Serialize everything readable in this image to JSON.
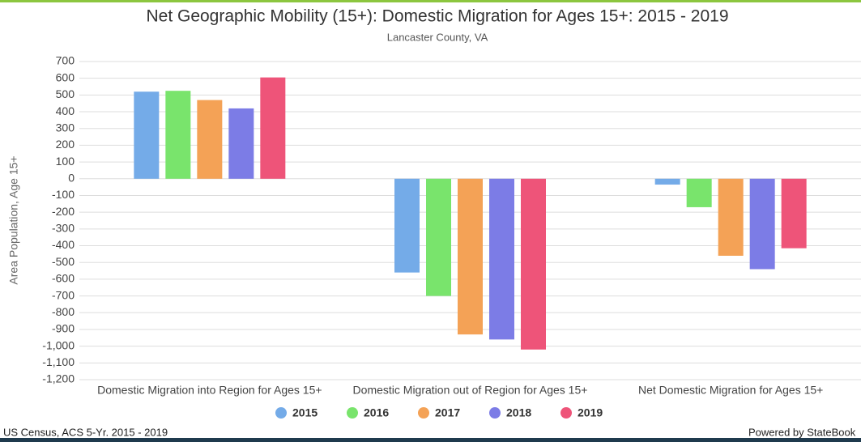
{
  "chart_data": {
    "type": "bar",
    "title": "Net Geographic Mobility (15+): Domestic Migration for Ages 15+: 2015 - 2019",
    "subtitle": "Lancaster County, VA",
    "y_label": "Area Population, Age 15+",
    "categories": [
      "Domestic Migration into Region for Ages 15+",
      "Domestic Migration out of Region for Ages 15+",
      "Net Domestic Migration for Ages 15+"
    ],
    "series": [
      {
        "name": "2015",
        "color": "#74abe8",
        "values": [
          520,
          -560,
          -35
        ]
      },
      {
        "name": "2016",
        "color": "#79e46c",
        "values": [
          525,
          -700,
          -170
        ]
      },
      {
        "name": "2017",
        "color": "#f4a256",
        "values": [
          470,
          -930,
          -460
        ]
      },
      {
        "name": "2018",
        "color": "#7c7ce6",
        "values": [
          420,
          -960,
          -540
        ]
      },
      {
        "name": "2019",
        "color": "#ee5479",
        "values": [
          605,
          -1020,
          -415
        ]
      }
    ],
    "ylim": [
      -1200,
      700
    ],
    "yticks": [
      700,
      600,
      500,
      400,
      300,
      200,
      100,
      0,
      -100,
      -200,
      -300,
      -400,
      -500,
      -600,
      -700,
      -800,
      -900,
      {
        "value": -1000,
        "label": "-1,000"
      },
      {
        "value": -1100,
        "label": "-1,100"
      },
      {
        "value": -1200,
        "label": "-1,200"
      }
    ],
    "grid": true,
    "source": "US Census, ACS 5-Yr. 2015 - 2019",
    "credit": "Powered by StateBook"
  }
}
